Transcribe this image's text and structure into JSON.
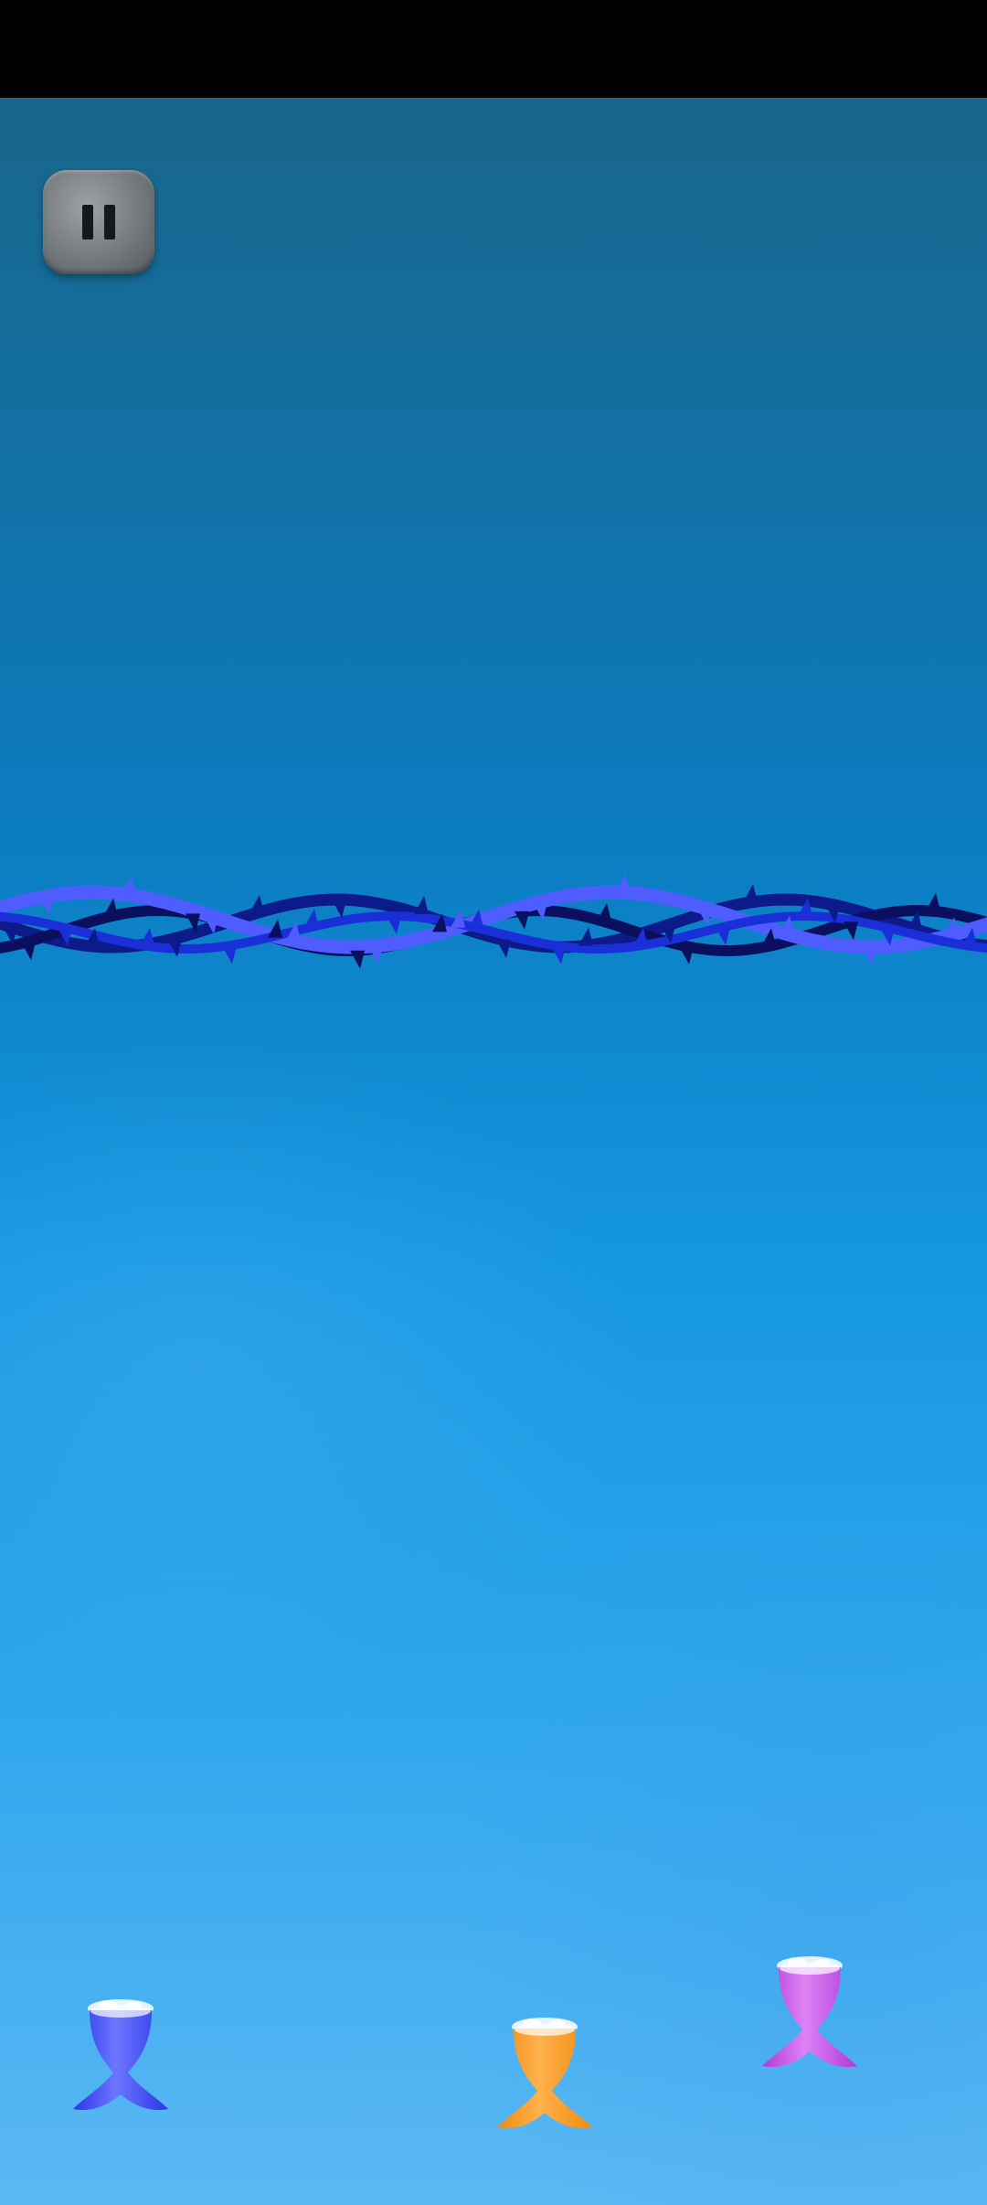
{
  "screen": {
    "status_bar_color": "#000000",
    "water_gradient": [
      "#19668a",
      "#0b7cc0",
      "#1596e0",
      "#32a8ee",
      "#5bb8f3"
    ]
  },
  "pause_button": {
    "icon": "pause-icon"
  },
  "obstacle": {
    "type": "thorn-vine",
    "strand_colors": [
      "#0c1a8a",
      "#0a0f5e",
      "#4f5dff",
      "#1a2fd8"
    ]
  },
  "fish_tails": [
    {
      "name": "blue",
      "color": "#2a36e6",
      "highlight": "#6d76ff"
    },
    {
      "name": "orange",
      "color": "#f08a10",
      "highlight": "#ffb24d"
    },
    {
      "name": "magenta",
      "color": "#b03ad8",
      "highlight": "#de82f5"
    }
  ]
}
